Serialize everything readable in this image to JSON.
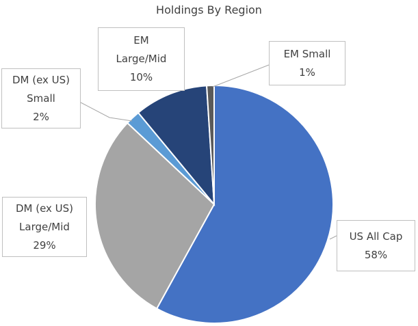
{
  "chart_data": {
    "type": "pie",
    "title": "Holdings By Region",
    "categories": [
      "US All Cap",
      "DM (ex US) Large/Mid",
      "DM (ex US) Small",
      "EM Large/Mid",
      "EM Small"
    ],
    "values": [
      58,
      29,
      2,
      10,
      1
    ],
    "value_labels": [
      "58%",
      "29%",
      "2%",
      "10%",
      "1%"
    ],
    "colors": [
      "#4472c4",
      "#a5a5a5",
      "#5b9bd5",
      "#264478",
      "#5a5a5a"
    ]
  }
}
